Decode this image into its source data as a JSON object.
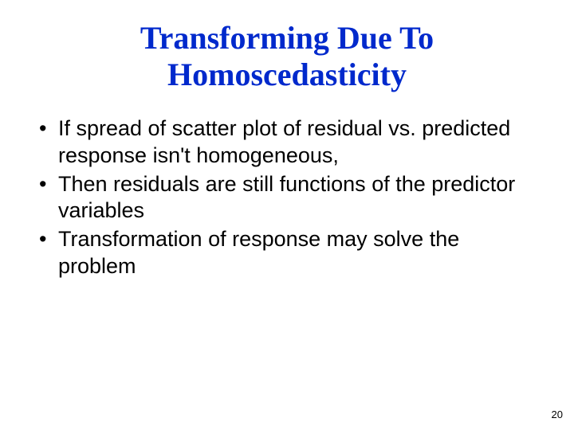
{
  "title": {
    "line1": "Transforming Due To",
    "line2": "Homoscedasticity",
    "color": "#0029cc",
    "fontsize": 40
  },
  "bullets": {
    "color": "#000000",
    "fontsize": 27,
    "items": [
      "If spread of scatter plot of residual vs. predicted response isn't homogeneous,",
      "Then residuals are still functions of the predictor variables",
      "Transformation of response may solve the problem"
    ]
  },
  "pageNumber": {
    "value": "20",
    "color": "#000000",
    "fontsize": 13
  }
}
